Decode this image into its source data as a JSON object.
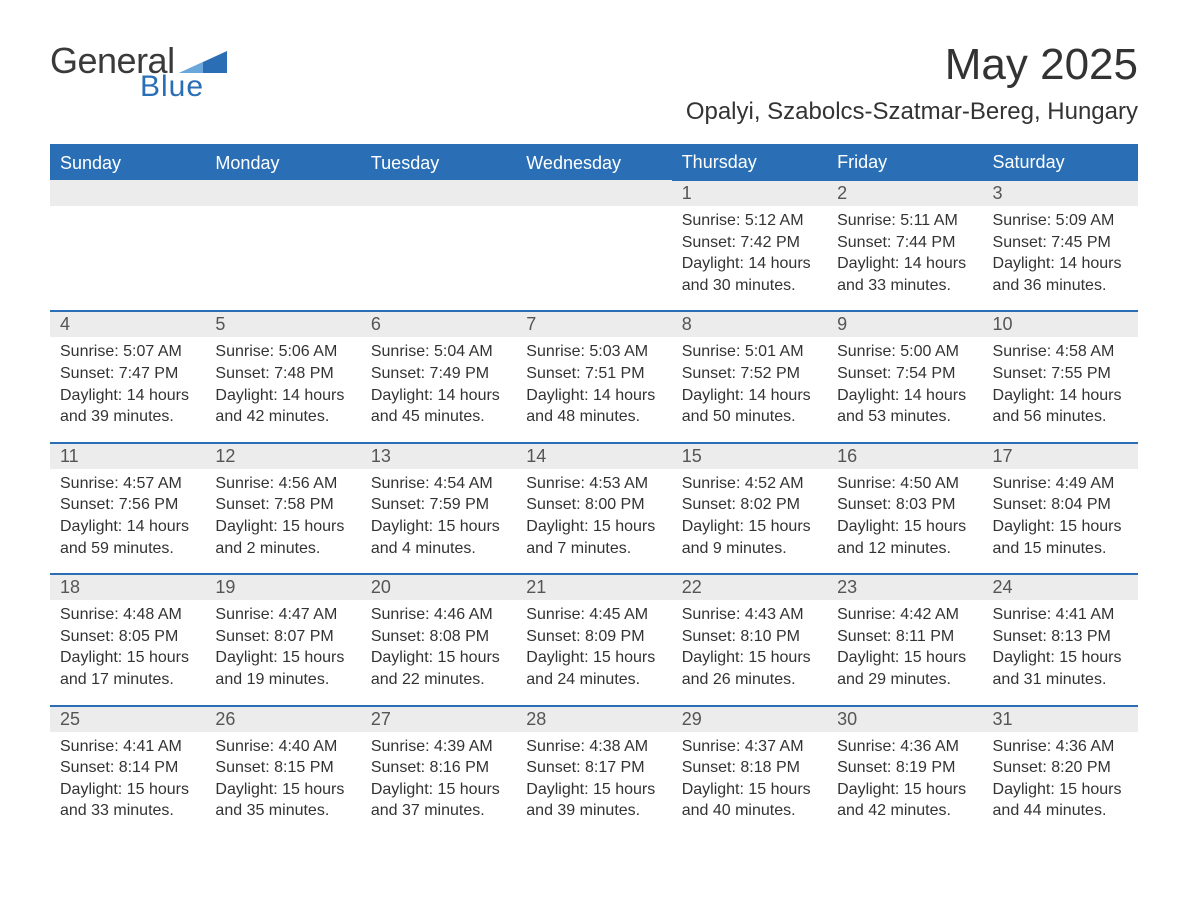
{
  "brand": {
    "word1": "General",
    "word2": "Blue",
    "text_color": "#3a3a3a",
    "accent_color": "#2a6fb5"
  },
  "header": {
    "month_title": "May 2025",
    "location": "Opalyi, Szabolcs-Szatmar-Bereg, Hungary"
  },
  "styling": {
    "header_bg": "#2a6fb5",
    "header_text": "#ffffff",
    "daynum_bg": "#ececec",
    "daynum_border": "#2a6fb5",
    "body_text": "#333333",
    "page_bg": "#ffffff",
    "font_family": "Arial",
    "title_fontsize_pt": 33,
    "location_fontsize_pt": 18,
    "header_cell_fontsize_pt": 13,
    "daynum_fontsize_pt": 13,
    "body_fontsize_pt": 12
  },
  "calendar": {
    "day_names": [
      "Sunday",
      "Monday",
      "Tuesday",
      "Wednesday",
      "Thursday",
      "Friday",
      "Saturday"
    ],
    "weeks": [
      [
        null,
        null,
        null,
        null,
        {
          "n": "1",
          "sunrise": "Sunrise: 5:12 AM",
          "sunset": "Sunset: 7:42 PM",
          "daylight": "Daylight: 14 hours and 30 minutes."
        },
        {
          "n": "2",
          "sunrise": "Sunrise: 5:11 AM",
          "sunset": "Sunset: 7:44 PM",
          "daylight": "Daylight: 14 hours and 33 minutes."
        },
        {
          "n": "3",
          "sunrise": "Sunrise: 5:09 AM",
          "sunset": "Sunset: 7:45 PM",
          "daylight": "Daylight: 14 hours and 36 minutes."
        }
      ],
      [
        {
          "n": "4",
          "sunrise": "Sunrise: 5:07 AM",
          "sunset": "Sunset: 7:47 PM",
          "daylight": "Daylight: 14 hours and 39 minutes."
        },
        {
          "n": "5",
          "sunrise": "Sunrise: 5:06 AM",
          "sunset": "Sunset: 7:48 PM",
          "daylight": "Daylight: 14 hours and 42 minutes."
        },
        {
          "n": "6",
          "sunrise": "Sunrise: 5:04 AM",
          "sunset": "Sunset: 7:49 PM",
          "daylight": "Daylight: 14 hours and 45 minutes."
        },
        {
          "n": "7",
          "sunrise": "Sunrise: 5:03 AM",
          "sunset": "Sunset: 7:51 PM",
          "daylight": "Daylight: 14 hours and 48 minutes."
        },
        {
          "n": "8",
          "sunrise": "Sunrise: 5:01 AM",
          "sunset": "Sunset: 7:52 PM",
          "daylight": "Daylight: 14 hours and 50 minutes."
        },
        {
          "n": "9",
          "sunrise": "Sunrise: 5:00 AM",
          "sunset": "Sunset: 7:54 PM",
          "daylight": "Daylight: 14 hours and 53 minutes."
        },
        {
          "n": "10",
          "sunrise": "Sunrise: 4:58 AM",
          "sunset": "Sunset: 7:55 PM",
          "daylight": "Daylight: 14 hours and 56 minutes."
        }
      ],
      [
        {
          "n": "11",
          "sunrise": "Sunrise: 4:57 AM",
          "sunset": "Sunset: 7:56 PM",
          "daylight": "Daylight: 14 hours and 59 minutes."
        },
        {
          "n": "12",
          "sunrise": "Sunrise: 4:56 AM",
          "sunset": "Sunset: 7:58 PM",
          "daylight": "Daylight: 15 hours and 2 minutes."
        },
        {
          "n": "13",
          "sunrise": "Sunrise: 4:54 AM",
          "sunset": "Sunset: 7:59 PM",
          "daylight": "Daylight: 15 hours and 4 minutes."
        },
        {
          "n": "14",
          "sunrise": "Sunrise: 4:53 AM",
          "sunset": "Sunset: 8:00 PM",
          "daylight": "Daylight: 15 hours and 7 minutes."
        },
        {
          "n": "15",
          "sunrise": "Sunrise: 4:52 AM",
          "sunset": "Sunset: 8:02 PM",
          "daylight": "Daylight: 15 hours and 9 minutes."
        },
        {
          "n": "16",
          "sunrise": "Sunrise: 4:50 AM",
          "sunset": "Sunset: 8:03 PM",
          "daylight": "Daylight: 15 hours and 12 minutes."
        },
        {
          "n": "17",
          "sunrise": "Sunrise: 4:49 AM",
          "sunset": "Sunset: 8:04 PM",
          "daylight": "Daylight: 15 hours and 15 minutes."
        }
      ],
      [
        {
          "n": "18",
          "sunrise": "Sunrise: 4:48 AM",
          "sunset": "Sunset: 8:05 PM",
          "daylight": "Daylight: 15 hours and 17 minutes."
        },
        {
          "n": "19",
          "sunrise": "Sunrise: 4:47 AM",
          "sunset": "Sunset: 8:07 PM",
          "daylight": "Daylight: 15 hours and 19 minutes."
        },
        {
          "n": "20",
          "sunrise": "Sunrise: 4:46 AM",
          "sunset": "Sunset: 8:08 PM",
          "daylight": "Daylight: 15 hours and 22 minutes."
        },
        {
          "n": "21",
          "sunrise": "Sunrise: 4:45 AM",
          "sunset": "Sunset: 8:09 PM",
          "daylight": "Daylight: 15 hours and 24 minutes."
        },
        {
          "n": "22",
          "sunrise": "Sunrise: 4:43 AM",
          "sunset": "Sunset: 8:10 PM",
          "daylight": "Daylight: 15 hours and 26 minutes."
        },
        {
          "n": "23",
          "sunrise": "Sunrise: 4:42 AM",
          "sunset": "Sunset: 8:11 PM",
          "daylight": "Daylight: 15 hours and 29 minutes."
        },
        {
          "n": "24",
          "sunrise": "Sunrise: 4:41 AM",
          "sunset": "Sunset: 8:13 PM",
          "daylight": "Daylight: 15 hours and 31 minutes."
        }
      ],
      [
        {
          "n": "25",
          "sunrise": "Sunrise: 4:41 AM",
          "sunset": "Sunset: 8:14 PM",
          "daylight": "Daylight: 15 hours and 33 minutes."
        },
        {
          "n": "26",
          "sunrise": "Sunrise: 4:40 AM",
          "sunset": "Sunset: 8:15 PM",
          "daylight": "Daylight: 15 hours and 35 minutes."
        },
        {
          "n": "27",
          "sunrise": "Sunrise: 4:39 AM",
          "sunset": "Sunset: 8:16 PM",
          "daylight": "Daylight: 15 hours and 37 minutes."
        },
        {
          "n": "28",
          "sunrise": "Sunrise: 4:38 AM",
          "sunset": "Sunset: 8:17 PM",
          "daylight": "Daylight: 15 hours and 39 minutes."
        },
        {
          "n": "29",
          "sunrise": "Sunrise: 4:37 AM",
          "sunset": "Sunset: 8:18 PM",
          "daylight": "Daylight: 15 hours and 40 minutes."
        },
        {
          "n": "30",
          "sunrise": "Sunrise: 4:36 AM",
          "sunset": "Sunset: 8:19 PM",
          "daylight": "Daylight: 15 hours and 42 minutes."
        },
        {
          "n": "31",
          "sunrise": "Sunrise: 4:36 AM",
          "sunset": "Sunset: 8:20 PM",
          "daylight": "Daylight: 15 hours and 44 minutes."
        }
      ]
    ]
  }
}
